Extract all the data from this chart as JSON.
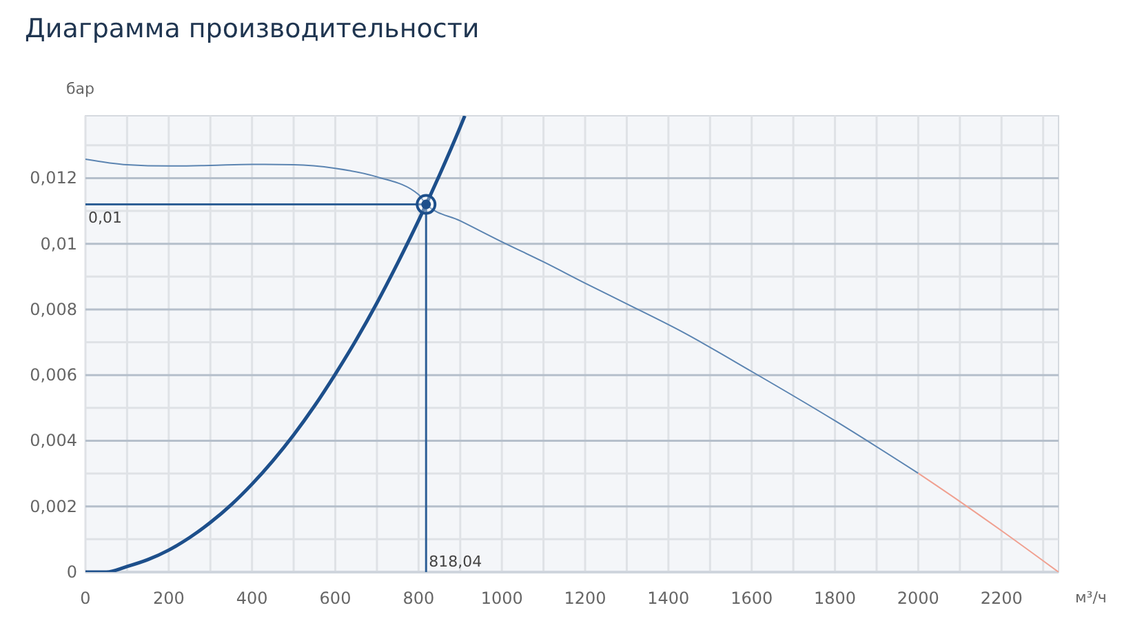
{
  "chart_data": {
    "type": "line",
    "title": "Диаграмма производительности",
    "xlabel": "м³/ч",
    "ylabel": "бар",
    "xlim": [
      0,
      2337
    ],
    "ylim": [
      0,
      0.0139
    ],
    "xticks": [
      0,
      {
        "value": 100,
        "label": null
      },
      200,
      {
        "value": 300,
        "label": null
      },
      400,
      {
        "value": 500,
        "label": null
      },
      600,
      {
        "value": 700,
        "label": null
      },
      800,
      {
        "value": 900,
        "label": null
      },
      1000,
      {
        "value": 1100,
        "label": null
      },
      1200,
      {
        "value": 1300,
        "label": null
      },
      1400,
      {
        "value": 1500,
        "label": null
      },
      1600,
      {
        "value": 1700,
        "label": null
      },
      1800,
      {
        "value": 1900,
        "label": null
      },
      2000,
      {
        "value": 2100,
        "label": null
      },
      2200,
      {
        "value": 2300,
        "label": null
      }
    ],
    "yticks": [
      0,
      {
        "value": 0.001,
        "label": null
      },
      {
        "value": 0.002,
        "label": "0,002"
      },
      {
        "value": 0.003,
        "label": null
      },
      {
        "value": 0.004,
        "label": "0,004"
      },
      {
        "value": 0.005,
        "label": null
      },
      {
        "value": 0.006,
        "label": "0,006"
      },
      {
        "value": 0.007,
        "label": null
      },
      {
        "value": 0.008,
        "label": "0,008"
      },
      {
        "value": 0.009,
        "label": null
      },
      {
        "value": 0.01,
        "label": "0,01"
      },
      {
        "value": 0.011,
        "label": null
      },
      {
        "value": 0.012,
        "label": "0,012"
      },
      {
        "value": 0.013,
        "label": null
      }
    ],
    "grid": true,
    "marker": "none",
    "series": [
      {
        "color": "#5b84b1",
        "x": [
          0,
          100,
          200,
          300,
          400,
          500,
          600,
          700,
          800,
          818.04,
          900,
          1000,
          1100,
          1200,
          1300,
          1430,
          1600,
          1800,
          2000
        ],
        "values": [
          0.01258,
          0.01241,
          0.01237,
          0.01239,
          0.01242,
          0.01241,
          0.0123,
          0.01204,
          0.0115,
          0.0112,
          0.0107,
          0.01006,
          0.00945,
          0.0088,
          0.00817,
          0.00734,
          0.00611,
          0.00461,
          0.00301
        ]
      },
      {
        "color": "#f0a090",
        "x": [
          2000,
          2100,
          2200,
          2337
        ],
        "values": [
          0.00301,
          0.00215,
          0.00126,
          0
        ]
      },
      {
        "color": "#1d4f8b",
        "x": [
          0,
          50,
          100,
          150,
          200,
          250,
          300,
          350,
          400,
          450,
          500,
          550,
          600,
          650,
          700,
          750,
          800,
          850,
          900,
          911
        ],
        "values": [
          0,
          0,
          0.00017,
          0.00038,
          0.00067,
          0.00105,
          0.00151,
          0.00205,
          0.00268,
          0.00339,
          0.00418,
          0.00506,
          0.00603,
          0.00707,
          0.0082,
          0.00942,
          0.01071,
          0.01209,
          0.01356,
          0.0139
        ]
      },
      {
        "type": "scatter",
        "color": "#1d4f8b",
        "marker": "circle",
        "x": [
          818.04
        ],
        "values": [
          0.0112
        ]
      }
    ],
    "ref_lines": [
      {
        "axis": "y",
        "value": 0.0112,
        "label": "0,01",
        "color": "#2e5f96"
      },
      {
        "axis": "x",
        "value": 818.04,
        "label": "818,04",
        "color": "#2e5f96"
      }
    ]
  }
}
